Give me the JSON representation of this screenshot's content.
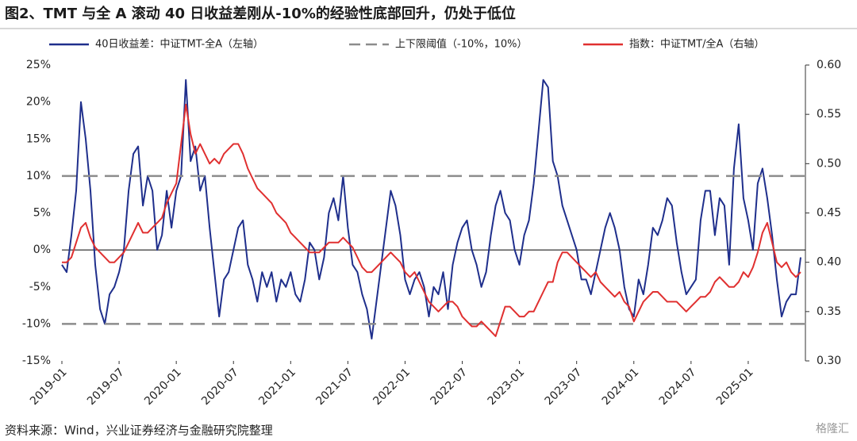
{
  "chart_data": {
    "type": "line",
    "title": "图2、TMT 与全 A 滚动 40 日收益差刚从-10%的经验性底部回升，仍处于低位",
    "source": "资料来源：Wind，兴业证券经济与金融研究院整理",
    "watermark": "格隆汇",
    "categories": [
      "2019-01",
      null,
      null,
      null,
      null,
      null,
      null,
      null,
      null,
      null,
      null,
      null,
      "2019-07",
      null,
      null,
      null,
      null,
      null,
      null,
      null,
      null,
      null,
      null,
      null,
      "2020-01",
      null,
      null,
      null,
      null,
      null,
      null,
      null,
      null,
      null,
      null,
      null,
      "2020-07",
      null,
      null,
      null,
      null,
      null,
      null,
      null,
      null,
      null,
      null,
      null,
      "2021-01",
      null,
      null,
      null,
      null,
      null,
      null,
      null,
      null,
      null,
      null,
      null,
      "2021-07",
      null,
      null,
      null,
      null,
      null,
      null,
      null,
      null,
      null,
      null,
      null,
      "2022-01",
      null,
      null,
      null,
      null,
      null,
      null,
      null,
      null,
      null,
      null,
      null,
      "2022-07",
      null,
      null,
      null,
      null,
      null,
      null,
      null,
      null,
      null,
      null,
      null,
      "2023-01",
      null,
      null,
      null,
      null,
      null,
      null,
      null,
      null,
      null,
      null,
      null,
      "2023-07",
      null,
      null,
      null,
      null,
      null,
      null,
      null,
      null,
      null,
      null,
      null,
      "2024-01",
      null,
      null,
      null,
      null,
      null,
      null,
      null,
      null,
      null,
      null,
      null,
      "2024-07",
      null,
      null,
      null,
      null,
      null,
      null,
      null,
      null,
      null,
      null,
      null,
      "2025-01",
      null,
      null,
      null,
      null,
      null,
      null,
      null,
      null,
      null,
      null,
      null
    ],
    "series": [
      {
        "name": "40日收益差：中证TMT-全A（左轴）",
        "color": "#1f2f8c",
        "axis": "y",
        "values": [
          -2,
          -3,
          2,
          8,
          20,
          15,
          8,
          -2,
          -8,
          -10,
          -6,
          -5,
          -3,
          0,
          8,
          13,
          14,
          6,
          10,
          8,
          0,
          2,
          8,
          3,
          8,
          10,
          23,
          12,
          14,
          8,
          10,
          3,
          -3,
          -9,
          -4,
          -3,
          0,
          3,
          4,
          -2,
          -4,
          -7,
          -3,
          -5,
          -3,
          -7,
          -4,
          -5,
          -3,
          -6,
          -7,
          -4,
          1,
          0,
          -4,
          -1,
          5,
          7,
          4,
          10,
          3,
          -2,
          -3,
          -6,
          -8,
          -12,
          -7,
          -2,
          3,
          8,
          6,
          2,
          -4,
          -6,
          -4,
          -3,
          -5,
          -9,
          -5,
          -6,
          -3,
          -8,
          -2,
          1,
          3,
          4,
          0,
          -2,
          -5,
          -3,
          2,
          6,
          8,
          5,
          4,
          0,
          -2,
          2,
          4,
          9,
          16,
          23,
          22,
          12,
          10,
          6,
          4,
          2,
          0,
          -4,
          -4,
          -6,
          -3,
          0,
          3,
          5,
          3,
          0,
          -5,
          -8,
          -9,
          -4,
          -6,
          -2,
          3,
          2,
          4,
          7,
          6,
          1,
          -3,
          -6,
          -5,
          -4,
          4,
          8,
          8,
          2,
          7,
          6,
          -2,
          11,
          17,
          7,
          4,
          0,
          9,
          11,
          7,
          2,
          -4,
          -9,
          -7,
          -6,
          -6,
          -1
        ]
      },
      {
        "name": "上下限阈值（-10%，10%）",
        "color": "#8c8c8c",
        "axis": "y",
        "dash": true,
        "levels": [
          -10,
          10
        ]
      },
      {
        "name": "指数：中证TMT/全A（右轴）",
        "color": "#e03030",
        "axis": "y2",
        "values": [
          0.4,
          0.4,
          0.405,
          0.42,
          0.435,
          0.44,
          0.425,
          0.415,
          0.41,
          0.405,
          0.4,
          0.4,
          0.405,
          0.41,
          0.42,
          0.43,
          0.44,
          0.43,
          0.43,
          0.435,
          0.44,
          0.445,
          0.46,
          0.47,
          0.48,
          0.52,
          0.56,
          0.53,
          0.51,
          0.52,
          0.51,
          0.5,
          0.505,
          0.5,
          0.51,
          0.515,
          0.52,
          0.52,
          0.51,
          0.495,
          0.485,
          0.475,
          0.47,
          0.465,
          0.46,
          0.45,
          0.445,
          0.44,
          0.43,
          0.425,
          0.42,
          0.415,
          0.41,
          0.41,
          0.41,
          0.415,
          0.42,
          0.42,
          0.42,
          0.425,
          0.42,
          0.415,
          0.405,
          0.395,
          0.39,
          0.39,
          0.395,
          0.4,
          0.405,
          0.41,
          0.405,
          0.4,
          0.39,
          0.385,
          0.39,
          0.38,
          0.37,
          0.36,
          0.355,
          0.35,
          0.355,
          0.36,
          0.36,
          0.355,
          0.345,
          0.34,
          0.335,
          0.335,
          0.34,
          0.335,
          0.33,
          0.325,
          0.34,
          0.355,
          0.355,
          0.35,
          0.345,
          0.345,
          0.35,
          0.35,
          0.36,
          0.37,
          0.38,
          0.38,
          0.4,
          0.41,
          0.41,
          0.405,
          0.4,
          0.395,
          0.39,
          0.385,
          0.39,
          0.38,
          0.375,
          0.37,
          0.365,
          0.37,
          0.36,
          0.355,
          0.34,
          0.35,
          0.36,
          0.365,
          0.37,
          0.37,
          0.365,
          0.36,
          0.36,
          0.36,
          0.355,
          0.35,
          0.355,
          0.36,
          0.365,
          0.365,
          0.37,
          0.38,
          0.385,
          0.38,
          0.375,
          0.375,
          0.38,
          0.39,
          0.385,
          0.395,
          0.41,
          0.43,
          0.44,
          0.42,
          0.4,
          0.395,
          0.4,
          0.39,
          0.385,
          0.39
        ]
      }
    ],
    "ylim": [
      -15,
      25
    ],
    "yticks": [
      {
        "value": -15,
        "label": "-15%"
      },
      {
        "value": -10,
        "label": "-10%"
      },
      {
        "value": -5,
        "label": "-5%"
      },
      {
        "value": 0,
        "label": "0%"
      },
      {
        "value": 5,
        "label": "5%"
      },
      {
        "value": 10,
        "label": "10%"
      },
      {
        "value": 15,
        "label": "15%"
      },
      {
        "value": 20,
        "label": "20%"
      },
      {
        "value": 25,
        "label": "25%"
      }
    ],
    "y2lim": [
      0.3,
      0.6
    ],
    "y2ticks": [
      {
        "value": 0.3,
        "label": "0.30"
      },
      0.35,
      {
        "value": 0.4,
        "label": "0.40"
      },
      0.45,
      {
        "value": 0.5,
        "label": "0.50"
      },
      0.55,
      {
        "value": 0.6,
        "label": "0.60"
      }
    ],
    "legend": "top"
  }
}
